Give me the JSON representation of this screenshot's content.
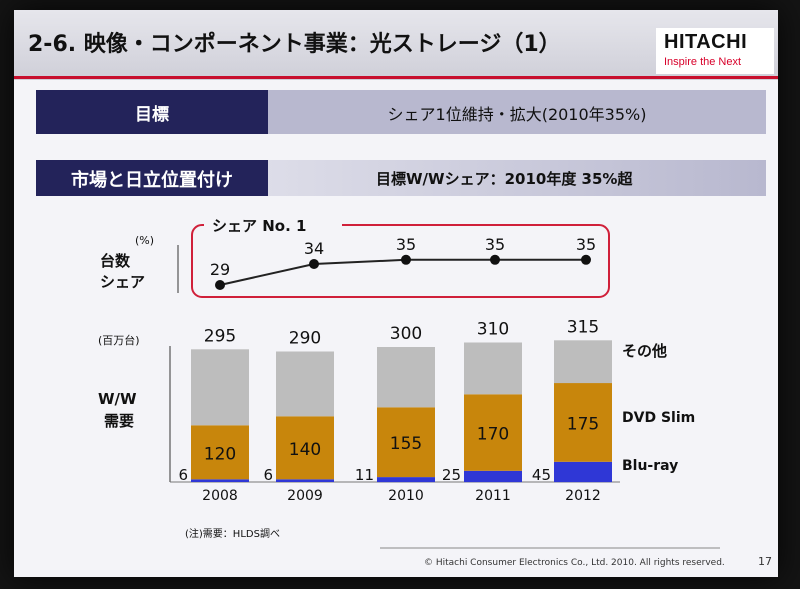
{
  "slide": {
    "title": "2-6. 映像・コンポーネント事業：光ストレージ（1）",
    "logo": "HITACHI",
    "tagline": "Inspire the Next",
    "goal_label": "目標",
    "goal_text": "シェア1位維持・拡大(2010年35%)",
    "position_label": "市場と日立位置付け",
    "position_text": "目標W/Wシェア：2010年度 35%超",
    "note": "(注)需要：HLDS調べ",
    "copyright": "© Hitachi Consumer Electronics Co., Ltd.  2010. All rights reserved.",
    "page_number": "17"
  },
  "colors": {
    "navy": "#23235a",
    "lavender": "#b8b8cf",
    "red": "#c8102e",
    "gray_segment": "#bdbdbd",
    "gold_segment": "#c8860c",
    "blue_segment": "#2f37d6"
  },
  "chart_data": [
    {
      "type": "line",
      "title": "シェア No. 1",
      "ylabel": "台数 シェア",
      "unit": "(%)",
      "x": [
        "2008",
        "2009",
        "2010",
        "2011",
        "2012"
      ],
      "values": [
        29,
        34,
        35,
        35,
        35
      ]
    },
    {
      "type": "bar",
      "stacked": true,
      "ylabel": "W/W 需要",
      "unit": "(百万台)",
      "categories": [
        "2008",
        "2009",
        "2010",
        "2011",
        "2012"
      ],
      "totals": [
        295,
        290,
        300,
        310,
        315
      ],
      "series": [
        {
          "name": "Blu-ray",
          "values": [
            6,
            6,
            11,
            25,
            45
          ],
          "color": "#2f37d6"
        },
        {
          "name": "DVD Slim",
          "values": [
            120,
            140,
            155,
            170,
            175
          ],
          "color": "#c8860c"
        },
        {
          "name": "その他",
          "values": [
            169,
            144,
            134,
            115,
            95
          ],
          "color": "#bdbdbd"
        }
      ]
    }
  ]
}
